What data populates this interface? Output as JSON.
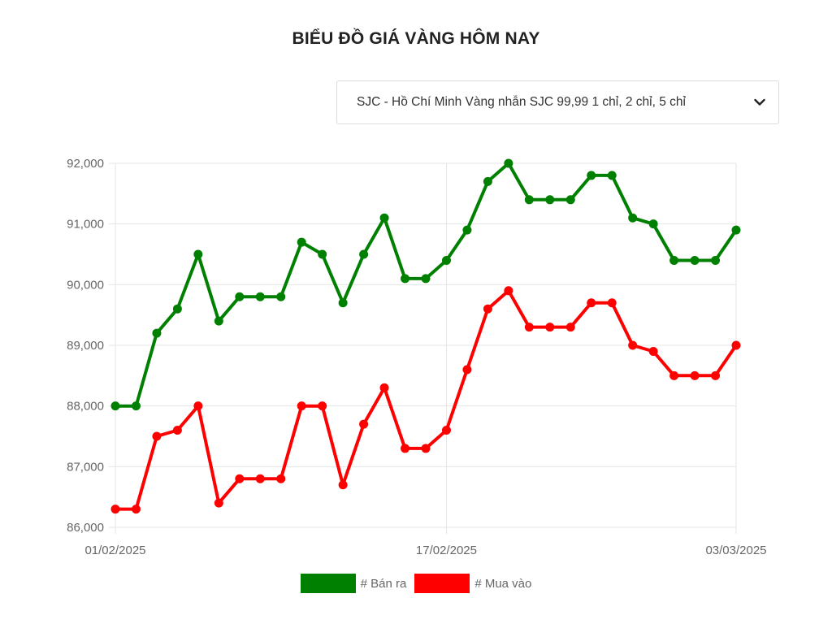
{
  "page": {
    "title": "BIỂU ĐỒ GIÁ VÀNG HÔM NAY"
  },
  "selector": {
    "value": "SJC - Hồ Chí Minh Vàng nhẫn SJC 99,99 1 chỉ, 2 chỉ, 5 chỉ",
    "icon": "chevron-down-icon"
  },
  "chart_data": {
    "type": "line",
    "x_ticks": [
      "01/02/2025",
      "17/02/2025",
      "03/03/2025"
    ],
    "y_ticks": [
      "86,000",
      "87,000",
      "88,000",
      "89,000",
      "90,000",
      "91,000",
      "92,000"
    ],
    "ylim": [
      86000,
      92000
    ],
    "grid": true,
    "legend_position": "bottom",
    "series": [
      {
        "name": "# Bán ra",
        "color": "#008000",
        "values": [
          88000,
          88000,
          89200,
          89600,
          90500,
          89400,
          89800,
          89800,
          89800,
          90700,
          90500,
          89700,
          90500,
          91100,
          90100,
          90100,
          90400,
          90900,
          91700,
          92000,
          91400,
          91400,
          91400,
          91800,
          91800,
          91100,
          91000,
          90400,
          90400,
          90400,
          90900
        ]
      },
      {
        "name": "# Mua vào",
        "color": "#ff0000",
        "values": [
          86300,
          86300,
          87500,
          87600,
          88000,
          86400,
          86800,
          86800,
          86800,
          88000,
          88000,
          86700,
          87700,
          88300,
          87300,
          87300,
          87600,
          88600,
          89600,
          89900,
          89300,
          89300,
          89300,
          89700,
          89700,
          89000,
          88900,
          88500,
          88500,
          88500,
          89000
        ]
      }
    ]
  }
}
